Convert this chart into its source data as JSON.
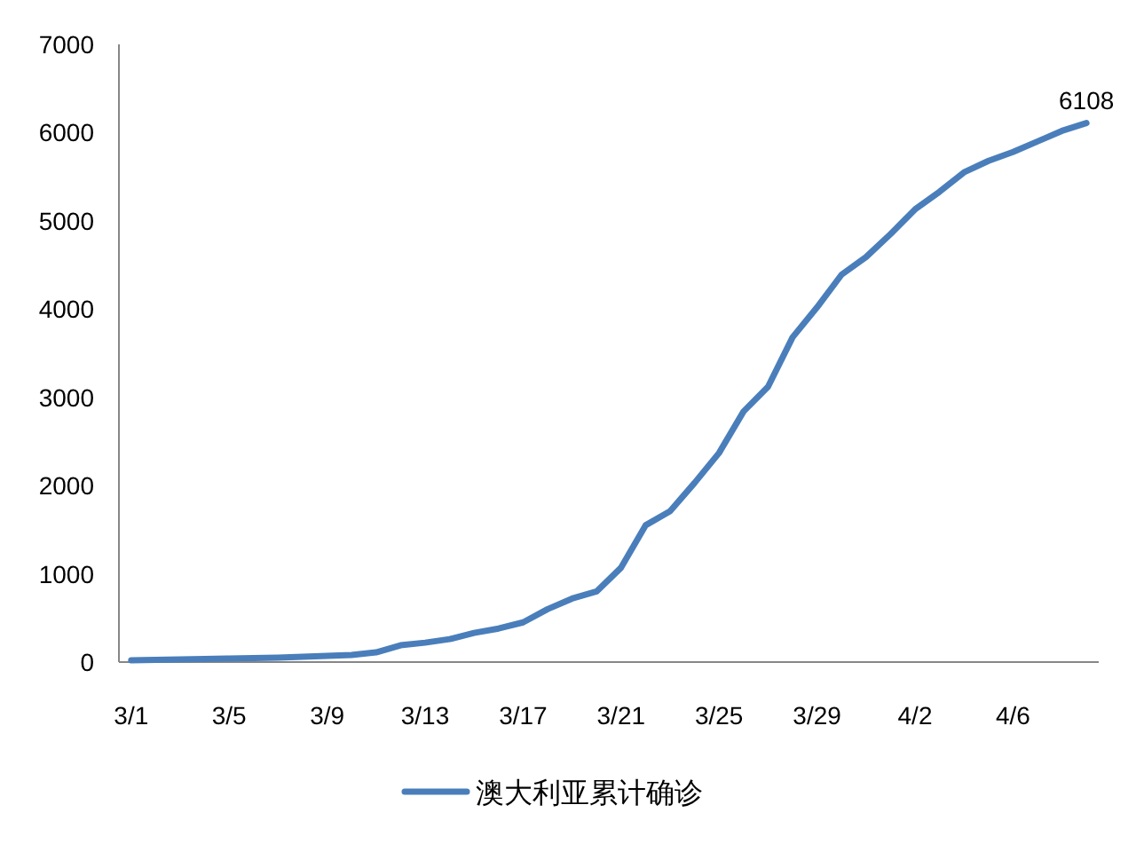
{
  "chart_data": {
    "type": "line",
    "categories": [
      "3/1",
      null,
      null,
      null,
      "3/5",
      null,
      null,
      null,
      "3/9",
      null,
      null,
      null,
      "3/13",
      null,
      null,
      null,
      "3/17",
      null,
      null,
      null,
      "3/21",
      null,
      null,
      null,
      "3/25",
      null,
      null,
      null,
      "3/29",
      null,
      null,
      null,
      "4/2",
      null,
      null,
      null,
      "4/6",
      null,
      null,
      null
    ],
    "series": [
      {
        "name": "澳大利亚累计确诊",
        "color": "#4a7ebb",
        "values": [
          20,
          25,
          30,
          35,
          40,
          45,
          50,
          60,
          70,
          80,
          110,
          190,
          220,
          260,
          330,
          380,
          450,
          600,
          720,
          800,
          1070,
          1550,
          1710,
          2030,
          2370,
          2840,
          3120,
          3680,
          4020,
          4390,
          4590,
          4850,
          5130,
          5330,
          5550,
          5680,
          5780,
          5900,
          6020,
          6108
        ],
        "value_labels": [
          null,
          null,
          null,
          null,
          null,
          null,
          null,
          null,
          null,
          null,
          null,
          null,
          null,
          null,
          null,
          null,
          null,
          null,
          null,
          null,
          null,
          null,
          null,
          null,
          null,
          null,
          null,
          null,
          null,
          null,
          null,
          null,
          null,
          null,
          null,
          null,
          null,
          null,
          null,
          "6108"
        ]
      }
    ],
    "ylim": [
      0,
      7000
    ],
    "yticks": [
      0,
      1000,
      2000,
      3000,
      4000,
      5000,
      6000,
      7000
    ],
    "grid": false,
    "legend": "bottom",
    "marker": "none",
    "line_style": "solid"
  }
}
